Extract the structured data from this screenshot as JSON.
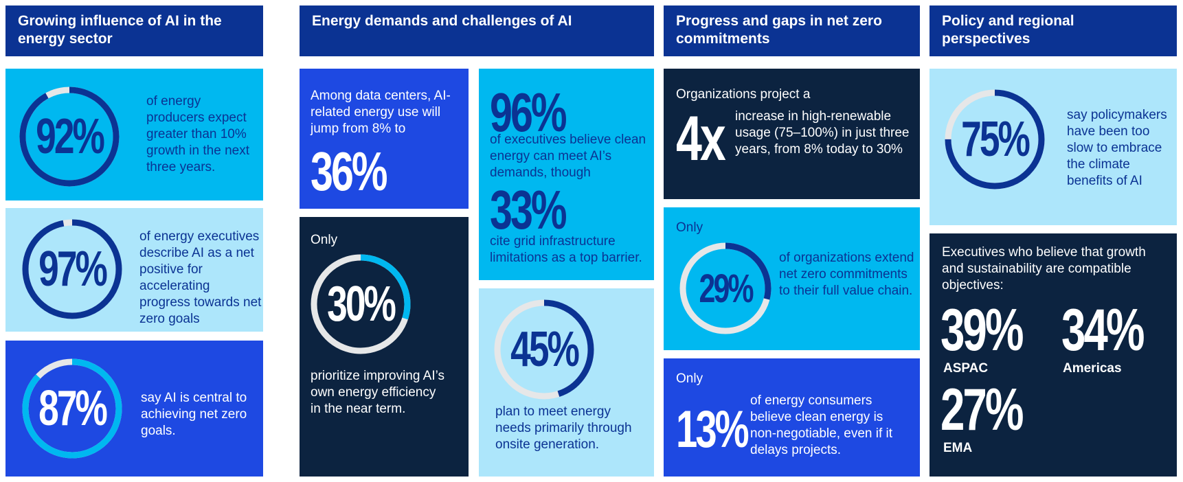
{
  "headers": [
    "Growing influence of AI in the energy sector",
    "Energy demands and challenges of AI",
    "Progress and gaps in net zero commitments",
    "Policy and regional perspectives"
  ],
  "col1": {
    "a": {
      "value": 92,
      "label": "92%",
      "text": "of energy producers expect greater than 10% growth in the next three years."
    },
    "b": {
      "value": 97,
      "label": "97%",
      "text": "of energy executives describe AI as a net positive for accelerating progress towards net zero goals"
    },
    "c": {
      "value": 87,
      "label": "87%",
      "text": "say AI is central to achieving net zero goals."
    }
  },
  "col2": {
    "datacenter": {
      "text": "Among data centers, AI-related energy use will jump from 8% to",
      "big": "36%"
    },
    "only30": {
      "only": "Only",
      "value": 30,
      "label": "30%",
      "text": "prioritize improving AI’s own energy efficiency in the near term."
    },
    "clean": {
      "big1": "96%",
      "text1": "of executives believe clean energy can meet AI’s demands, though",
      "big2": "33%",
      "text2": "cite grid infrastructure limitations as a top barrier."
    },
    "onsite": {
      "value": 45,
      "label": "45%",
      "text": "plan to meet energy needs primarily through onsite generation."
    }
  },
  "col3": {
    "fourx": {
      "intro": "Organizations project a",
      "big": "4x",
      "text": "increase in high-renewable usage (75–100%) in just three years, from 8% today to 30%"
    },
    "only29": {
      "only": "Only",
      "value": 29,
      "label": "29%",
      "text": "of organizations extend net zero commitments to their full value chain."
    },
    "only13": {
      "only": "Only",
      "big": "13%",
      "text": "of energy consumers believe clean energy is non-negotiable, even if it delays projects."
    }
  },
  "col4": {
    "policy": {
      "value": 75,
      "label": "75%",
      "text": "say policymakers have been too slow to embrace the climate benefits of AI"
    },
    "regions": {
      "intro": "Executives who believe that growth and sustainability are compatible objectives:",
      "items": [
        {
          "value": "39%",
          "region": "ASPAC"
        },
        {
          "value": "34%",
          "region": "Americas"
        },
        {
          "value": "27%",
          "region": "EMA"
        }
      ]
    }
  },
  "colors": {
    "header": "#0b3393",
    "cyan": "#00b8f0",
    "pale": "#ade6fb",
    "blue": "#1e49e2",
    "navy": "#0c2340",
    "dark_text": "#0b3393",
    "track": "#e6e7e8"
  }
}
